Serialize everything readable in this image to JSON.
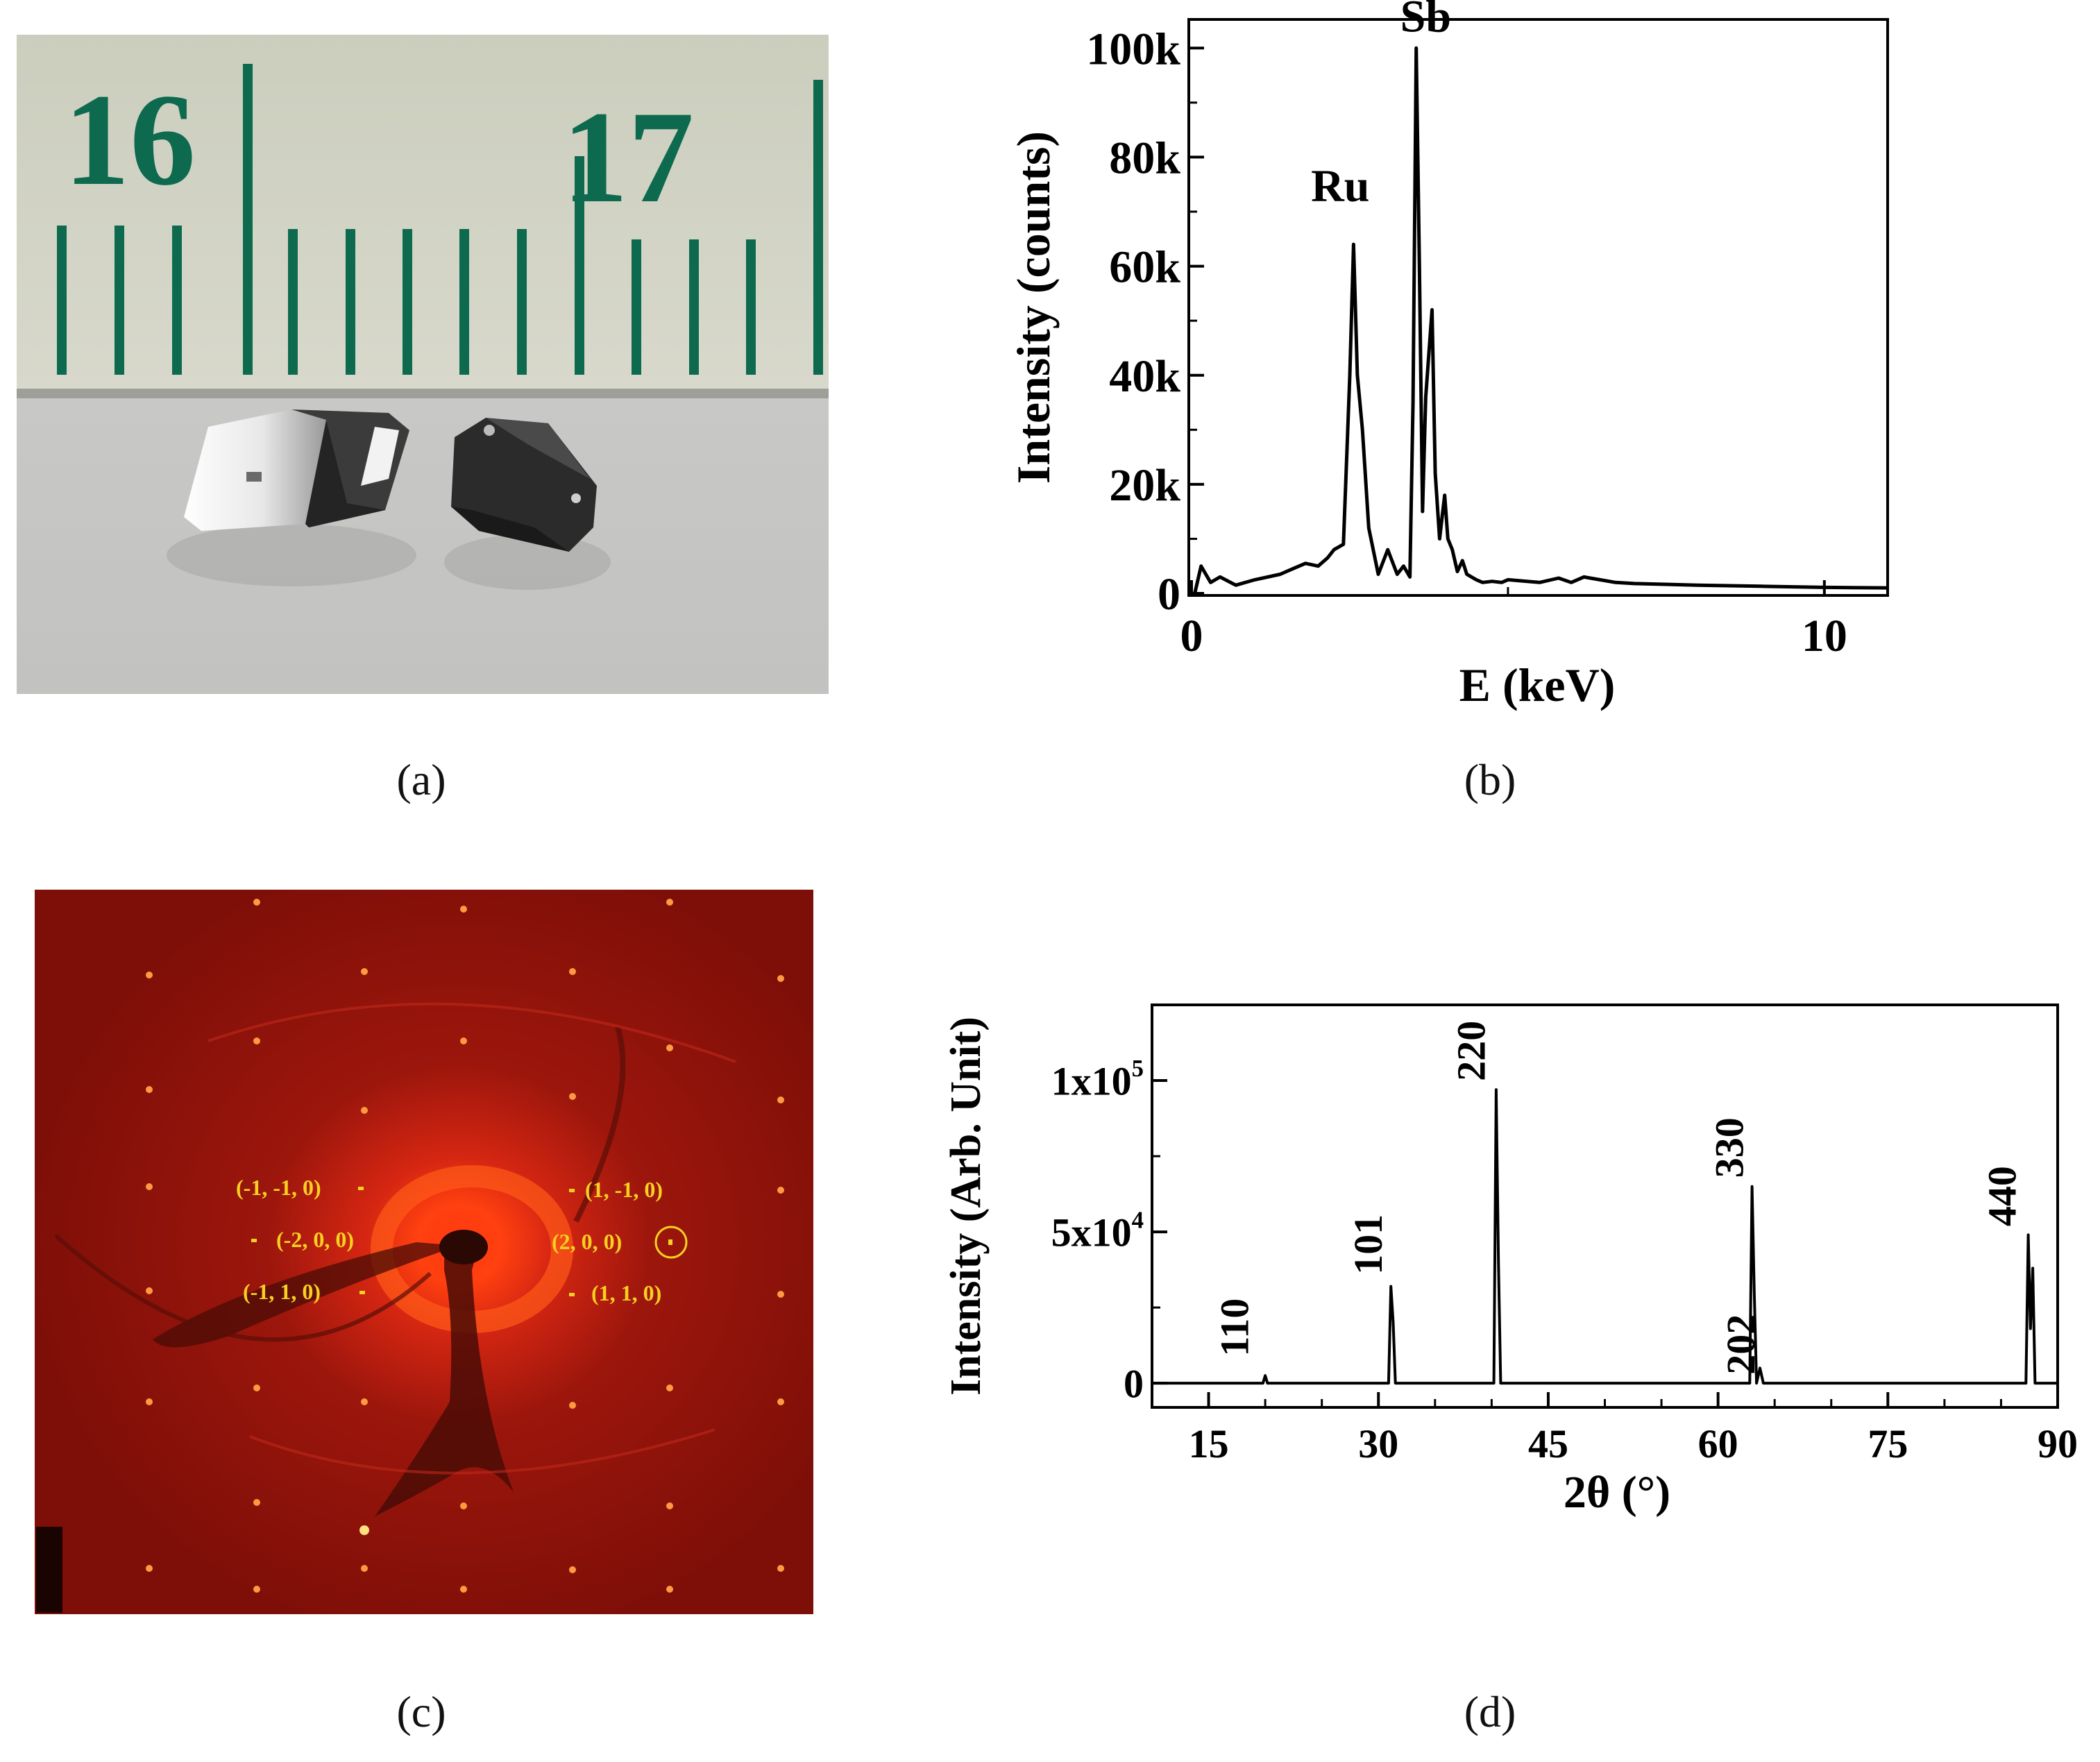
{
  "panels": {
    "a": {
      "caption": "(a)",
      "ruler": {
        "major_labels": [
          "16",
          "17"
        ]
      }
    },
    "b": {
      "caption": "(b)"
    },
    "c": {
      "caption": "(c)",
      "spot_labels": [
        "(-1, -1, 0)",
        "(1, -1, 0)",
        "(-2, 0, 0)",
        "(2, 0, 0)",
        "(-1, 1, 0)",
        "(1, 1, 0)"
      ]
    },
    "d": {
      "caption": "(d)"
    }
  },
  "colors": {
    "line": "#000000",
    "diffraction_bg": "#8e1008",
    "spot_label": "#f7d020",
    "ruler_ink": "#0d6a4e"
  },
  "chart_data": [
    {
      "id": "eds",
      "type": "line",
      "xlabel": "E (keV)",
      "ylabel": "Intensity (counts)",
      "xlim": [
        0,
        11
      ],
      "ylim": [
        0,
        105000
      ],
      "x_ticks": [
        0,
        10
      ],
      "y_ticks": [
        0,
        20000,
        40000,
        60000,
        80000,
        100000
      ],
      "y_tick_labels": [
        "0",
        "20k",
        "40k",
        "60k",
        "80k",
        "100k"
      ],
      "annotations": [
        {
          "text": "Ru",
          "x": 2.35,
          "y": 72000
        },
        {
          "text": "Sb",
          "x": 3.7,
          "y": 103000
        }
      ],
      "series": [
        {
          "x": [
            0.05,
            0.15,
            0.3,
            0.45,
            0.7,
            1.0,
            1.4,
            1.6,
            1.8,
            2.0,
            2.15,
            2.25,
            2.4,
            2.5,
            2.56,
            2.62,
            2.7,
            2.8,
            2.95,
            3.1,
            3.25,
            3.35,
            3.45,
            3.5,
            3.55,
            3.6,
            3.65,
            3.7,
            3.8,
            3.85,
            3.92,
            4.0,
            4.05,
            4.12,
            4.2,
            4.28,
            4.35,
            4.5,
            4.6,
            4.75,
            4.9,
            5.0,
            5.5,
            5.8,
            6.0,
            6.2,
            6.5,
            6.7,
            7.0,
            8.0,
            9.0,
            10.0,
            11.0
          ],
          "y": [
            0,
            5000,
            2000,
            3000,
            1500,
            2500,
            3500,
            4500,
            5500,
            5000,
            6500,
            8000,
            9000,
            40000,
            64000,
            40000,
            30000,
            12000,
            3500,
            8000,
            3500,
            5000,
            3000,
            35000,
            100000,
            60000,
            15000,
            36000,
            52000,
            22000,
            10000,
            18000,
            10000,
            8000,
            4000,
            6000,
            3500,
            2500,
            2000,
            2200,
            2000,
            2500,
            2000,
            2800,
            2000,
            3000,
            2400,
            2000,
            1800,
            1500,
            1300,
            1100,
            1000
          ]
        }
      ]
    },
    {
      "id": "xrd",
      "type": "line",
      "xlabel": "2θ (°)",
      "ylabel": "Intensity (Arb. Unit)",
      "xlim": [
        10,
        90
      ],
      "ylim": [
        -8000,
        125000
      ],
      "x_ticks": [
        15,
        30,
        45,
        60,
        75,
        90
      ],
      "y_ticks": [
        0,
        50000,
        100000
      ],
      "y_tick_labels": [
        "0",
        "5x10",
        "1x10"
      ],
      "y_tick_exponents": [
        "",
        "4",
        "5"
      ],
      "annotations": [
        {
          "text": "110",
          "x": 18.5,
          "y": 7000
        },
        {
          "text": "101",
          "x": 30.3,
          "y": 34000
        },
        {
          "text": "220",
          "x": 39.4,
          "y": 98000
        },
        {
          "text": "330",
          "x": 62.2,
          "y": 66000
        },
        {
          "text": "202",
          "x": 63.2,
          "y": 1000
        },
        {
          "text": "440",
          "x": 86.3,
          "y": 50000
        }
      ],
      "series": [
        {
          "x": [
            10,
            19.8,
            20.0,
            20.2,
            30.9,
            31.1,
            31.3,
            31.5,
            40.2,
            40.4,
            40.6,
            40.8,
            62.8,
            63.0,
            63.2,
            63.4,
            63.7,
            64.0,
            87.2,
            87.4,
            87.6,
            87.8,
            88.0,
            90.0
          ],
          "y": [
            0,
            0,
            2500,
            0,
            0,
            32000,
            20000,
            0,
            0,
            97000,
            40000,
            0,
            0,
            65000,
            30000,
            0,
            5000,
            0,
            0,
            49000,
            18000,
            38000,
            0,
            0
          ]
        }
      ]
    }
  ]
}
